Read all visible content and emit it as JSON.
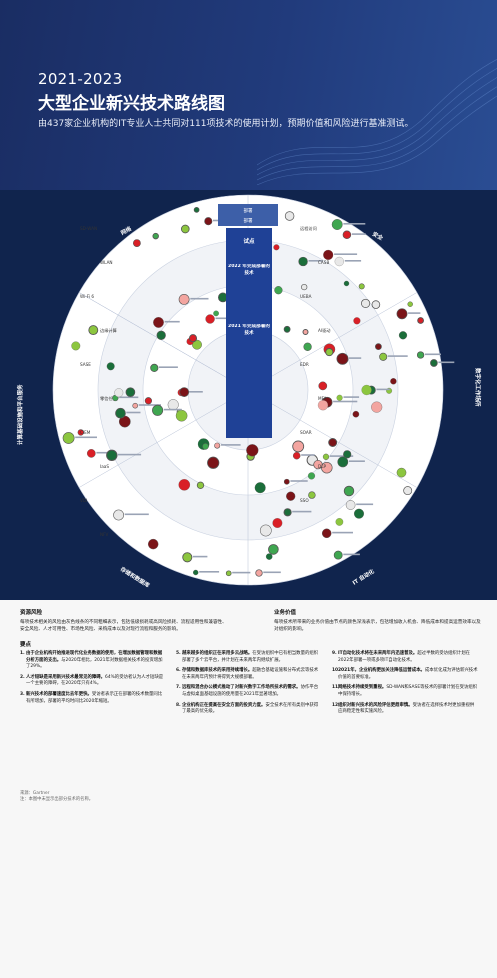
{
  "hero": {
    "range": "2021-2023",
    "title": "大型企业新兴技术路线图",
    "subtitle": "由437家企业机构的IT专业人士共同对111项技术的使用计划，预期价值和风险进行基准测试。"
  },
  "radar": {
    "center_labels": {
      "pilot": "试点",
      "y2022": "2022 年完成部署的技术",
      "y2021": "2021 年完成部署的技术",
      "done": "部署",
      "dep": "部署"
    },
    "sector_labels": [
      "网络",
      "安全",
      "数字化工作场所",
      "计算基础设施和平台服务",
      "存储和数据库",
      "IT 自动化"
    ],
    "items_left": [
      "SD-WAN",
      "WLAN",
      "Wi-Fi 6",
      "边缘计算",
      "SASE",
      "零信任",
      "CIEM",
      "IaaS",
      "VDI",
      "NFV"
    ],
    "items_right": [
      "远程访问",
      "CASB",
      "UEBA",
      "AI驱动",
      "EDR",
      "MFA",
      "SOAR",
      "DLP",
      "SSO"
    ]
  },
  "legend": {
    "left_head": "资源风险",
    "left_text": "每项技术相关的风险由灰色线条的不同粗细表示，包括低级损耗或高风险损耗、流程适用性和兼容性、安全风险、人才可用性、市场性风险、采购成本以及对现行流程和服务的影响。",
    "right_head": "业务价值",
    "right_text": "每项技术所带来的业务价值由节点的颜色深浅表示，包括增加收入机会、降低成本和提高运营效率以及对组织的影响。"
  },
  "points": {
    "title": "要点",
    "col1": [
      {
        "n": "1.",
        "b": "由于企业机构开始推进现代化业务数据的使用，在增加数据管理和数据分析方面的支出。",
        "t": "与2020年相比，2021年对数据相关技术的投资增加了29%。"
      },
      {
        "n": "2.",
        "b": "人才短缺是采用新兴技术最常见的障碍。",
        "t": "64%的受访者认为人才短缺是一个主要的障碍，在2020年只有4%。"
      },
      {
        "n": "3.",
        "b": "新兴技术的部署速度比去年更快。",
        "t": "受访者表示正在部署的技术数量同比有所增加，部署的平均时间比2020年缩短。"
      }
    ],
    "col2": [
      {
        "n": "5.",
        "b": "越来越多的组织正在采用多云战略。",
        "t": "在受访组织中已有相当数量的组织部署了多个云平台，并计划在未来两年内继续扩展。"
      },
      {
        "n": "6.",
        "b": "存储和数据库技术的采用持续增长。",
        "t": "超融合基础设施和分布式云等技术在未来两年内预计将得到大规模部署。"
      },
      {
        "n": "7.",
        "b": "远程和混合办公模式推动了对新兴数字工作场所技术的需求。",
        "t": "协作平台与虚拟桌面基础设施的使用量在2021年显著增加。"
      },
      {
        "n": "8.",
        "b": "企业机构正在提高在安全方面的投资力度。",
        "t": "安全技术在所有类别中获得了最高的优先级。"
      }
    ],
    "col3": [
      {
        "n": "9.",
        "b": "IT自动化技术将在未来两年内迅速普及。",
        "t": "超过半数的受访组织计划在2022年部署一项或多项IT自动化技术。"
      },
      {
        "n": "10.",
        "b": "2021年，企业机构更加关注降低运营成本。",
        "t": "成本优化成为评估新兴技术价值的首要标准。"
      },
      {
        "n": "11.",
        "b": "网络技术持续受到重视。",
        "t": "SD-WAN和SASE等技术的部署计划在受访组织中保持增长。"
      },
      {
        "n": "12.",
        "b": "组织对新兴技术的风险评估更趋审慎。",
        "t": "受访者在选择技术时更加重视供应商稳定性和实施风险。"
      }
    ]
  },
  "source": {
    "line1": "来源：Gartner",
    "line2": "注：本图中未显示出部分技术的名称。"
  }
}
